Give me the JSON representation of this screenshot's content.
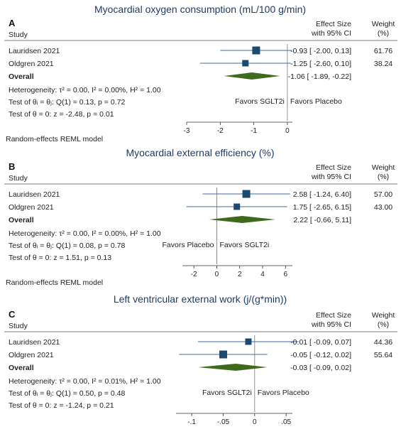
{
  "chart_data": [
    {
      "type": "forest",
      "panel_letter": "A",
      "title": "Myocardial oxygen consumption (mL/100 g/min)",
      "column_headers": {
        "study": "Study",
        "effect_line1": "Effect Size",
        "effect_line2": "with 95% CI",
        "weight_line1": "Weight",
        "weight_line2": "(%)"
      },
      "studies": [
        {
          "name": "Lauridsen 2021",
          "effect": -0.93,
          "lower": -2.0,
          "upper": 0.13,
          "weight": 61.76,
          "ci_text": "-0.93 [ -2.00,  0.13]",
          "weight_text": "61.76"
        },
        {
          "name": "Oldgren 2021",
          "effect": -1.25,
          "lower": -2.6,
          "upper": 0.1,
          "weight": 38.24,
          "ci_text": "-1.25 [ -2.60,  0.10]",
          "weight_text": "38.24"
        }
      ],
      "overall": {
        "label": "Overall",
        "effect": -1.06,
        "lower": -1.89,
        "upper": -0.22,
        "ci_text": "-1.06 [ -1.89, -0.22]"
      },
      "heterogeneity_text": "Heterogeneity: τ² = 0.00, I² = 0.00%, H² = 1.00",
      "test_equal_text": "Test of θᵢ = θⱼ: Q(1) = 0.13, p = 0.72",
      "test_zero_text": "Test of θ = 0: z = -2.48, p = 0.01",
      "favors_left": "Favors SGLT2i",
      "favors_right": "Favors Placebo",
      "xlim": [
        -3,
        0.15
      ],
      "ticks": [
        {
          "v": -3,
          "label": "-3"
        },
        {
          "v": -2,
          "label": "-2"
        },
        {
          "v": -1,
          "label": "-1"
        },
        {
          "v": 0,
          "label": "0"
        }
      ],
      "null_line": 0,
      "model_note": "Random-effects REML model"
    },
    {
      "type": "forest",
      "panel_letter": "B",
      "title": "Myocardial external efficiency (%)",
      "column_headers": {
        "study": "Study",
        "effect_line1": "Effect Size",
        "effect_line2": "with 95% CI",
        "weight_line1": "Weight",
        "weight_line2": "(%)"
      },
      "studies": [
        {
          "name": "Lauridsen 2021",
          "effect": 2.58,
          "lower": -1.24,
          "upper": 6.4,
          "weight": 57.0,
          "ci_text": "2.58 [ -1.24, 6.40]",
          "weight_text": "57.00"
        },
        {
          "name": "Oldgren 2021",
          "effect": 1.75,
          "lower": -2.65,
          "upper": 6.15,
          "weight": 43.0,
          "ci_text": "1.75 [ -2.65, 6.15]",
          "weight_text": "43.00"
        }
      ],
      "overall": {
        "label": "Overall",
        "effect": 2.22,
        "lower": -0.66,
        "upper": 5.11,
        "ci_text": "2.22 [ -0.66, 5.11]"
      },
      "heterogeneity_text": "Heterogeneity: τ² = 0.00, I² = 0.00%, H² = 1.00",
      "test_equal_text": "Test of θᵢ = θⱼ: Q(1) = 0.08, p = 0.78",
      "test_zero_text": "Test of θ = 0: z = 1.51, p = 0.13",
      "favors_left": "Favors Placebo",
      "favors_right": "Favors SGLT2i",
      "xlim": [
        -3,
        6.6
      ],
      "ticks": [
        {
          "v": -2,
          "label": "-2"
        },
        {
          "v": 0,
          "label": "0"
        },
        {
          "v": 2,
          "label": "2"
        },
        {
          "v": 4,
          "label": "4"
        },
        {
          "v": 6,
          "label": "6"
        }
      ],
      "null_line": 0,
      "model_note": "Random-effects REML model"
    },
    {
      "type": "forest",
      "panel_letter": "C",
      "title": "Left ventricular external work (j/(g*min))",
      "column_headers": {
        "study": "Study",
        "effect_line1": "Effect Size",
        "effect_line2": "with 95% CI",
        "weight_line1": "Weight",
        "weight_line2": "(%)"
      },
      "studies": [
        {
          "name": "Lauridsen 2021",
          "effect": -0.01,
          "lower": -0.09,
          "upper": 0.07,
          "weight": 44.36,
          "ci_text": "-0.01 [ -0.09, 0.07]",
          "weight_text": "44.36"
        },
        {
          "name": "Oldgren 2021",
          "effect": -0.05,
          "lower": -0.12,
          "upper": 0.02,
          "weight": 55.64,
          "ci_text": "-0.05 [ -0.12, 0.02]",
          "weight_text": "55.64"
        }
      ],
      "overall": {
        "label": "Overall",
        "effect": -0.03,
        "lower": -0.09,
        "upper": 0.02,
        "ci_text": "-0.03 [ -0.09, 0.02]"
      },
      "heterogeneity_text": "Heterogeneity: τ² = 0.00, I² = 0.01%, H² = 1.00",
      "test_equal_text": "Test of θᵢ = θⱼ: Q(1) = 0.50, p = 0.48",
      "test_zero_text": "Test of θ = 0: z = -1.24, p = 0.21",
      "favors_left": "Favors SGLT2i",
      "favors_right": "Favors Placebo",
      "xlim": [
        -0.125,
        0.06
      ],
      "ticks": [
        {
          "v": -0.1,
          "label": "-.1"
        },
        {
          "v": -0.05,
          "label": "-.05"
        },
        {
          "v": 0,
          "label": "0"
        },
        {
          "v": 0.05,
          "label": ".05"
        }
      ],
      "null_line": 0,
      "model_note": ""
    }
  ],
  "colors": {
    "title": "#1f3b66",
    "marker": "#1a4a72",
    "diamond": "#3f6a1e",
    "ci_line": "#3a6da0",
    "axis": "#333333"
  }
}
